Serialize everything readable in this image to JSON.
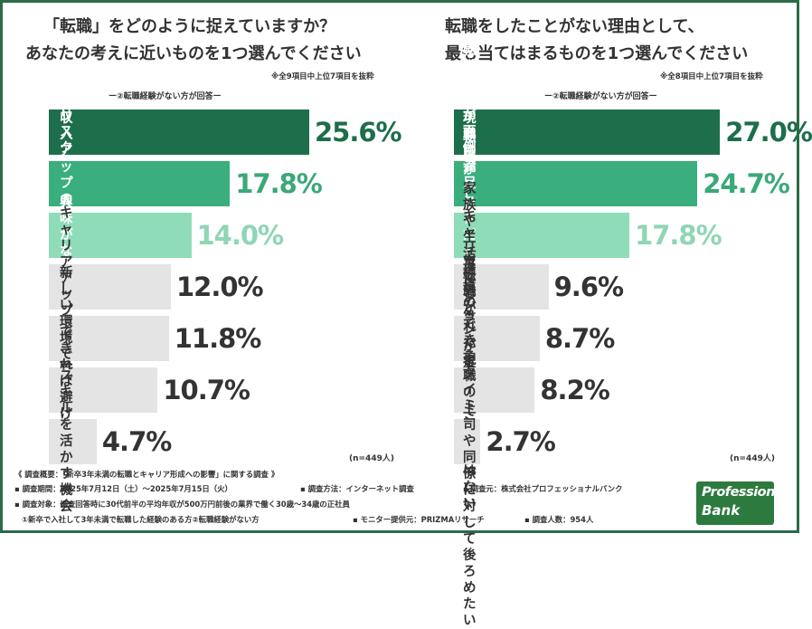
{
  "colors": {
    "rank1": "#1d6e4a",
    "rank2": "#3aae7d",
    "rank3": "#8fdcb8",
    "rest": "#e4e4e4",
    "rank3_value": "#8fd6b4",
    "value_dark": "#333333",
    "value_green": "#1d6e4a",
    "value_mid": "#3aa877",
    "border": "#2b6b45"
  },
  "left": {
    "title_line1": "「転職」をどのように捉えていますか？",
    "title_line2": "あなたの考えに近いものを1つ選んでください",
    "note": "※全9項目中上位7項目を抜粋",
    "subhead": "ー②転職経験がない方が回答ー",
    "n_label": "(n=449人)"
  },
  "right": {
    "title_line1": "転職をしたことがない理由として、",
    "title_line2": "最も当てはまるものを1つ選んでください",
    "note": "※全8項目中上位7項目を抜粋",
    "subhead": "ー②転職経験がない方が回答ー",
    "n_label": "(n=449人)"
  },
  "chart_data": [
    {
      "type": "bar",
      "orientation": "horizontal",
      "title": "「転職」をどのように捉えていますか？あなたの考えに近いものを1つ選んでください",
      "categories": [
        "不安やリスクがある",
        "収入アップの可能性",
        "興味がない",
        "キャリアアップの手段",
        "新しい環境で再出発",
        "できれば避けたい",
        "スキルを活かす機会"
      ],
      "values": [
        25.6,
        17.8,
        14.0,
        12.0,
        11.8,
        10.7,
        4.7
      ],
      "value_labels": [
        "25.6%",
        "17.8%",
        "14.0%",
        "12.0%",
        "11.8%",
        "10.7%",
        "4.7%"
      ],
      "unit": "%",
      "xlim": [
        0,
        30
      ]
    },
    {
      "type": "bar",
      "orientation": "horizontal",
      "title": "転職をしたことがない理由として、最も当てはまるものを1つ選んでください",
      "categories": [
        "転職活動が面倒に感じる",
        "現職に満足している",
        "転職がリスクだと考えている",
        "家族や生活環境の事情がある",
        "キャリアビジョンが定まっていない",
        "転職ができるタイミングではない",
        "育ててくれた現職の上司や同僚に対して後ろめたい"
      ],
      "category_labels": [
        "転職活動が面倒に感じる",
        "現職に満足している",
        "転職がリスクだと\n考えている",
        "家族や生活環境の\n事情がある",
        "キャリアビジョンが\n定まっていない",
        "転職ができる\nタイミングではない",
        "育ててくれた現職の上司や\n同僚に対して後ろめたい"
      ],
      "values": [
        27.0,
        24.7,
        17.8,
        9.6,
        8.7,
        8.2,
        2.7
      ],
      "value_labels": [
        "27.0%",
        "24.7%",
        "17.8%",
        "9.6%",
        "8.7%",
        "8.2%",
        "2.7%"
      ],
      "unit": "%",
      "xlim": [
        0,
        30
      ]
    }
  ],
  "footer": {
    "line1": "《 調査概要：「新卒3年未満の転職とキャリア形成への影響」に関する調査 》",
    "line2a": "▪ 調査期間：2025年7月12日（土）〜2025年7月15日（火）",
    "line2b": "▪ 調査方法：インターネット調査",
    "line2c": "▪ 調査元：株式会社プロフェッショナルバンク",
    "line3": "▪ 調査対象：調査回答時に30代前半の平均年収が500万円前後の業界で働く30歳〜34歳の正社員",
    "line4a": "①新卒で入社して3年未満で転職した経験のある方②転職経験がない方",
    "line4b": "▪ モニター提供元：PRIZMAリサーチ",
    "line4c": "▪ 調査人数：954人"
  },
  "logo": {
    "line1": "Professional",
    "line2": "Bank"
  }
}
